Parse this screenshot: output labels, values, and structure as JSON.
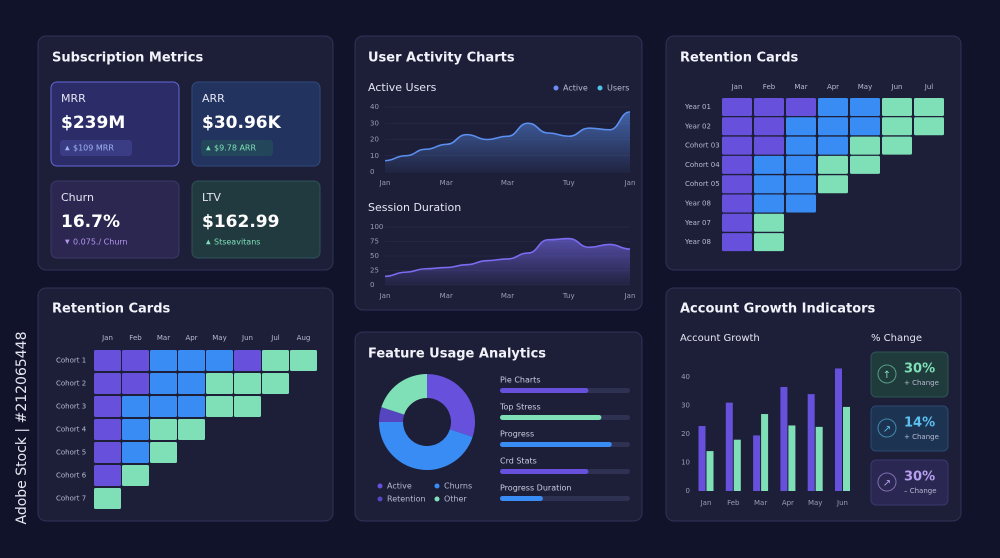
{
  "watermark": "Adobe Stock | #212065448",
  "subscription": {
    "title": "Subscription Metrics",
    "cards": [
      {
        "label": "MRR",
        "value": "$239M",
        "change": "$109 MRR"
      },
      {
        "label": "ARR",
        "value": "$30.96K",
        "change": "$9.78 ARR"
      },
      {
        "label": "Churn",
        "value": "16.7%",
        "change": "0.075./ Churn"
      },
      {
        "label": "LTV",
        "value": "$162.99",
        "change": "Stseavitans"
      }
    ]
  },
  "activity": {
    "title": "User Activity Charts",
    "charts": [
      {
        "type": "area",
        "title": "Active Users",
        "legend": [
          {
            "name": "Active",
            "color": "#6f8bf5"
          },
          {
            "name": "Users",
            "color": "#4fc3e8"
          }
        ],
        "categories": [
          "Jan",
          null,
          null,
          "Mar",
          null,
          null,
          "Mar",
          null,
          null,
          "Tuy",
          null,
          null,
          "Jan"
        ],
        "values": [
          7,
          10,
          14,
          17,
          23,
          20,
          22,
          30,
          24,
          22,
          27,
          26,
          37
        ],
        "color": "#5b8ff0",
        "ylim": [
          0,
          40
        ],
        "yticks": [
          0,
          10,
          20,
          30,
          40
        ],
        "grid": true
      },
      {
        "type": "area",
        "title": "Session Duration",
        "categories": [
          "Jan",
          null,
          null,
          "Mar",
          null,
          null,
          "Mar",
          null,
          null,
          "Tuy",
          null,
          null,
          "Jan"
        ],
        "values": [
          15,
          22,
          28,
          30,
          35,
          42,
          45,
          55,
          78,
          80,
          65,
          70,
          62
        ],
        "color": "#7a6cf0",
        "ylim": [
          0,
          100
        ],
        "yticks": [
          0,
          25,
          50,
          75,
          100
        ],
        "grid": true
      }
    ]
  },
  "retention_top": {
    "title": "Retention Cards",
    "columns": [
      "Jan",
      "Feb",
      "Mar",
      "Apr",
      "May",
      "Jun",
      "Jul"
    ],
    "rows": [
      "Year 01",
      "Year 02",
      "Cohort 03",
      "Cohort 04",
      "Cohort 05",
      "Year 08",
      "Year 07",
      "Year 08"
    ],
    "cells": [
      [
        "#6650dc",
        "#6650dc",
        "#6650dc",
        "#3a8cf5",
        "#3a8cf5",
        "#7fe0b8",
        "#7fe0b8"
      ],
      [
        "#6650dc",
        "#6650dc",
        "#3a8cf5",
        "#3a8cf5",
        "#3a8cf5",
        "#7fe0b8",
        "#7fe0b8"
      ],
      [
        "#6650dc",
        "#6650dc",
        "#3a8cf5",
        "#3a8cf5",
        "#7fe0b8",
        "#7fe0b8"
      ],
      [
        "#6650dc",
        "#3a8cf5",
        "#3a8cf5",
        "#7fe0b8",
        "#7fe0b8"
      ],
      [
        "#6650dc",
        "#3a8cf5",
        "#3a8cf5",
        "#7fe0b8"
      ],
      [
        "#6650dc",
        "#3a8cf5",
        "#3a8cf5"
      ],
      [
        "#6650dc",
        "#7fe0b8"
      ],
      [
        "#6650dc",
        "#7fe0b8"
      ]
    ]
  },
  "retention_bottom": {
    "title": "Retention Cards",
    "columns": [
      "Jan",
      "Feb",
      "Mar",
      "Apr",
      "May",
      "Jun",
      "Jul",
      "Aug"
    ],
    "rows": [
      "Cohort 1",
      "Cohort 2",
      "Cohort 3",
      "Cohort 4",
      "Cohort 5",
      "Cohort 6",
      "Cohort 7"
    ],
    "cells": [
      [
        "#6650dc",
        "#6650dc",
        "#3a8cf5",
        "#3a8cf5",
        "#3a8cf5",
        "#6650dc",
        "#7fe0b8",
        "#7fe0b8"
      ],
      [
        "#6650dc",
        "#6650dc",
        "#3a8cf5",
        "#3a8cf5",
        "#7fe0b8",
        "#7fe0b8",
        "#7fe0b8"
      ],
      [
        "#6650dc",
        "#3a8cf5",
        "#3a8cf5",
        "#3a8cf5",
        "#7fe0b8",
        "#7fe0b8"
      ],
      [
        "#6650dc",
        "#3a8cf5",
        "#7fe0b8",
        "#7fe0b8"
      ],
      [
        "#6650dc",
        "#3a8cf5",
        "#7fe0b8"
      ],
      [
        "#6650dc",
        "#7fe0b8"
      ],
      [
        "#7fe0b8"
      ]
    ]
  },
  "features": {
    "title": "Feature Usage Analytics",
    "donut": {
      "type": "pie",
      "categories": [
        "Active",
        "Churns",
        "Retention",
        "Other"
      ],
      "values": [
        30,
        45,
        5,
        20
      ],
      "colors": [
        "#6650dc",
        "#3a8cf5",
        "#5546c0",
        "#7fe0b8"
      ]
    },
    "bars": {
      "type": "progress",
      "categories": [
        "Pie Charts",
        "Top Stress",
        "Progress",
        "Crd Stats",
        "Progress Duration"
      ],
      "values": [
        68,
        78,
        86,
        68,
        33
      ],
      "colors": [
        "#6650dc",
        "#7fe0b8",
        "#3a8cf5",
        "#6650dc",
        "#3a8cf5"
      ],
      "xlim": [
        0,
        100
      ]
    }
  },
  "growth": {
    "title": "Account Growth Indicators",
    "chart": {
      "type": "bar",
      "title": "Account Growth",
      "categories": [
        "Jan",
        "Feb",
        "Mar",
        "Apr",
        "May",
        "Jun"
      ],
      "series": [
        {
          "color": "#6650dc",
          "values": [
            22.8,
            31,
            19.5,
            36.5,
            34,
            43
          ]
        },
        {
          "color": "#7fe0b8",
          "values": [
            14,
            18,
            27,
            23,
            22.5,
            29.5
          ]
        }
      ],
      "ylim": [
        0,
        45
      ],
      "yticks": [
        0,
        10,
        20,
        30,
        40
      ]
    },
    "change_title": "% Change",
    "changes": [
      {
        "value": "30%",
        "label": "+ Change"
      },
      {
        "value": "14%",
        "label": "+ Change"
      },
      {
        "value": "30%",
        "label": "– Change"
      }
    ]
  }
}
